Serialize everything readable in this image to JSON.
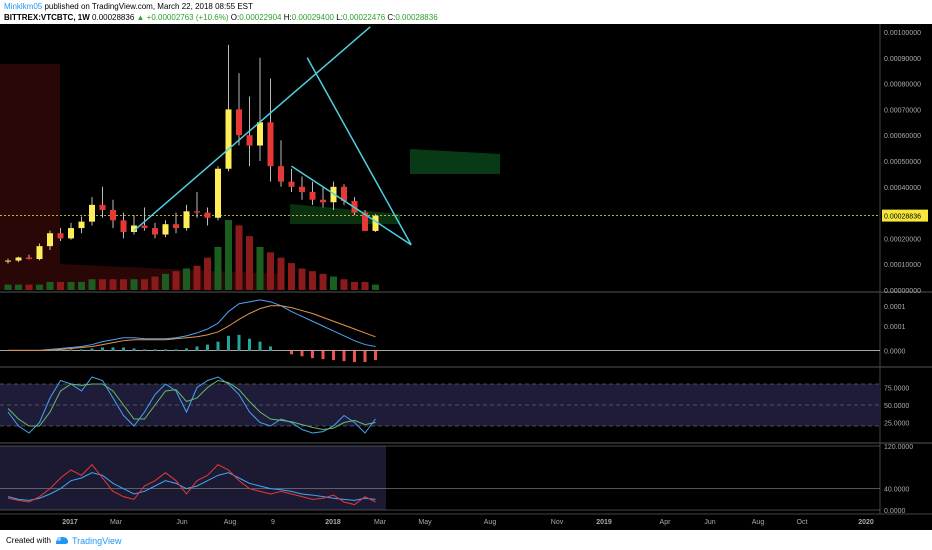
{
  "header": {
    "author": "Minklkm05",
    "published_text": "published on TradingView.com, March 22, 2018 08:55 EST",
    "symbol": "BITTREX:VTCBTC, 1W",
    "last": "0.00028836",
    "change_arrow": "▲",
    "change": "+0.00002763 (+10.6%)",
    "o_label": "O:",
    "o_value": "0.00022904",
    "h_label": "H:",
    "h_value": "0.00029400",
    "l_label": "L:",
    "l_value": "0.00022476",
    "c_label": "C:",
    "c_value": "0.00028836"
  },
  "footer": {
    "created_with": "Created with",
    "brand": "TradingView"
  },
  "colors": {
    "background": "#000000",
    "up_candle": "#ffee58",
    "down_candle": "#e53935",
    "up_volume": "#1b5e20",
    "down_volume": "#8b1a1a",
    "trendline": "#4dd0e1",
    "price_line": "#f6e53a",
    "macd_line": "#4fa3f7",
    "signal_line": "#e6954a",
    "stoch_k": "#42a5f5",
    "stoch_d": "#66bb6a",
    "rsi_red": "#e53935"
  },
  "chart_data": [
    {
      "type": "candlestick",
      "name": "price",
      "y_ticks": [
        "0.00100000",
        "0.00090000",
        "0.00080000",
        "0.00070000",
        "0.00060000",
        "0.00050000",
        "0.00040000",
        "0.00030000",
        "0.00020000",
        "0.00010000",
        "0.00000000"
      ],
      "ylim": [
        0,
        0.001
      ],
      "last_price_label": "0.00028836",
      "candles": [
        [
          0.000112,
          0.000121,
          0.000102,
          0.000114
        ],
        [
          0.000114,
          0.000129,
          0.000108,
          0.000126
        ],
        [
          0.000126,
          0.000137,
          0.000118,
          0.00012
        ],
        [
          0.00012,
          0.00018,
          0.000115,
          0.00017
        ],
        [
          0.00017,
          0.00023,
          0.000155,
          0.00022
        ],
        [
          0.00022,
          0.00024,
          0.00019,
          0.0002
        ],
        [
          0.0002,
          0.00026,
          0.000195,
          0.00024
        ],
        [
          0.00024,
          0.000285,
          0.00022,
          0.000265
        ],
        [
          0.000265,
          0.00036,
          0.00025,
          0.00033
        ],
        [
          0.00033,
          0.0004,
          0.00028,
          0.00031
        ],
        [
          0.00031,
          0.00035,
          0.00024,
          0.00027
        ],
        [
          0.00027,
          0.0003,
          0.0002,
          0.000225
        ],
        [
          0.000225,
          0.00029,
          0.000215,
          0.00025
        ],
        [
          0.00025,
          0.00032,
          0.00023,
          0.00024
        ],
        [
          0.00024,
          0.00026,
          0.0002,
          0.000215
        ],
        [
          0.000215,
          0.00027,
          0.000205,
          0.000255
        ],
        [
          0.000255,
          0.0003,
          0.00022,
          0.00024
        ],
        [
          0.00024,
          0.00033,
          0.00023,
          0.000305
        ],
        [
          0.000305,
          0.00038,
          0.00028,
          0.0003
        ],
        [
          0.0003,
          0.00032,
          0.00025,
          0.00028
        ],
        [
          0.00028,
          0.00048,
          0.00027,
          0.00047
        ],
        [
          0.00047,
          0.00095,
          0.00046,
          0.0007
        ],
        [
          0.0007,
          0.00084,
          0.00056,
          0.0006
        ],
        [
          0.0006,
          0.00075,
          0.00048,
          0.00056
        ],
        [
          0.00056,
          0.0009,
          0.0005,
          0.00065
        ],
        [
          0.00065,
          0.00082,
          0.00042,
          0.00048
        ],
        [
          0.00048,
          0.00058,
          0.0004,
          0.00042
        ],
        [
          0.00042,
          0.00047,
          0.00038,
          0.0004
        ],
        [
          0.0004,
          0.00044,
          0.00035,
          0.00038
        ],
        [
          0.00038,
          0.00042,
          0.00033,
          0.00035
        ],
        [
          0.00035,
          0.0004,
          0.00032,
          0.00034
        ],
        [
          0.00034,
          0.00042,
          0.00031,
          0.0004
        ],
        [
          0.0004,
          0.00041,
          0.00033,
          0.000345
        ],
        [
          0.000345,
          0.00036,
          0.00029,
          0.0003
        ],
        [
          0.0003,
          0.00031,
          0.00023,
          0.000229
        ],
        [
          0.000229,
          0.000294,
          0.000225,
          0.000288
        ]
      ]
    },
    {
      "type": "bar",
      "name": "volume",
      "values": [
        2,
        2,
        2,
        2,
        3,
        3,
        3,
        3,
        4,
        4,
        4,
        4,
        4,
        4,
        5,
        6,
        7,
        8,
        9,
        12,
        16,
        26,
        24,
        20,
        16,
        14,
        12,
        10,
        8,
        7,
        6,
        5,
        4,
        3,
        3,
        2
      ]
    },
    {
      "type": "line",
      "name": "macd",
      "y_ticks": [
        "0.0001",
        "0.0001",
        "0.0000"
      ],
      "series": [
        {
          "values": [
            0,
            0,
            0,
            0,
            0.1,
            0.2,
            0.3,
            0.4,
            0.6,
            0.9,
            1.1,
            1.3,
            1.3,
            1.2,
            1.2,
            1.2,
            1.3,
            1.5,
            1.8,
            2.2,
            2.8,
            4.0,
            4.8,
            5.0,
            5.2,
            5.0,
            4.6,
            4.0,
            3.5,
            3.0,
            2.5,
            2.0,
            1.5,
            1.0,
            0.6,
            0.4
          ]
        },
        {
          "values": [
            0,
            0,
            0,
            0,
            0,
            0.1,
            0.2,
            0.3,
            0.4,
            0.6,
            0.8,
            1.0,
            1.1,
            1.1,
            1.1,
            1.1,
            1.2,
            1.3,
            1.4,
            1.6,
            1.9,
            2.5,
            3.2,
            3.8,
            4.3,
            4.6,
            4.6,
            4.4,
            4.1,
            3.8,
            3.4,
            3.0,
            2.6,
            2.2,
            1.8,
            1.4
          ]
        }
      ],
      "histogram": [
        0,
        0,
        0,
        0,
        0.1,
        0.1,
        0.1,
        0.1,
        0.2,
        0.3,
        0.3,
        0.3,
        0.2,
        0.1,
        0.1,
        0.1,
        0.1,
        0.2,
        0.4,
        0.6,
        0.9,
        1.5,
        1.6,
        1.2,
        0.9,
        0.4,
        0,
        -0.4,
        -0.6,
        -0.8,
        -0.9,
        -1.0,
        -1.1,
        -1.2,
        -1.2,
        -1.0
      ]
    },
    {
      "type": "line",
      "name": "stoch",
      "y_ticks": [
        "75.0000",
        "50.0000",
        "25.0000"
      ],
      "ylim": [
        0,
        100
      ],
      "series": [
        {
          "values": [
            40,
            20,
            10,
            25,
            60,
            85,
            80,
            70,
            90,
            85,
            60,
            35,
            20,
            40,
            65,
            80,
            70,
            40,
            75,
            85,
            90,
            80,
            65,
            40,
            25,
            20,
            30,
            25,
            15,
            10,
            12,
            20,
            35,
            25,
            10,
            30
          ]
        },
        {
          "values": [
            45,
            30,
            20,
            20,
            40,
            70,
            80,
            78,
            80,
            80,
            70,
            50,
            30,
            30,
            50,
            70,
            72,
            55,
            60,
            75,
            85,
            82,
            72,
            55,
            40,
            30,
            28,
            26,
            22,
            18,
            15,
            17,
            25,
            28,
            22,
            25
          ]
        }
      ]
    },
    {
      "type": "line",
      "name": "rsi",
      "y_ticks": [
        "120.0000",
        "40.0000",
        "0.0000"
      ],
      "ylim": [
        0,
        120
      ],
      "series": [
        {
          "values": [
            25,
            20,
            18,
            22,
            30,
            40,
            55,
            60,
            70,
            65,
            50,
            40,
            30,
            35,
            45,
            55,
            50,
            40,
            45,
            55,
            65,
            70,
            60,
            50,
            45,
            40,
            38,
            35,
            30,
            28,
            25,
            22,
            20,
            18,
            22,
            20
          ]
        },
        {
          "values": [
            22,
            18,
            15,
            25,
            40,
            60,
            75,
            65,
            85,
            60,
            35,
            25,
            20,
            45,
            55,
            70,
            55,
            30,
            55,
            65,
            85,
            75,
            55,
            40,
            35,
            30,
            35,
            30,
            25,
            20,
            22,
            28,
            15,
            10,
            25,
            15
          ]
        }
      ]
    }
  ],
  "x_ticks": [
    "2017",
    "Mar",
    "Jun",
    "Aug",
    "9",
    "2018",
    "Mar",
    "May",
    "Aug",
    "Nov",
    "2019",
    "Apr",
    "Jun",
    "Aug",
    "Oct",
    "2020"
  ]
}
